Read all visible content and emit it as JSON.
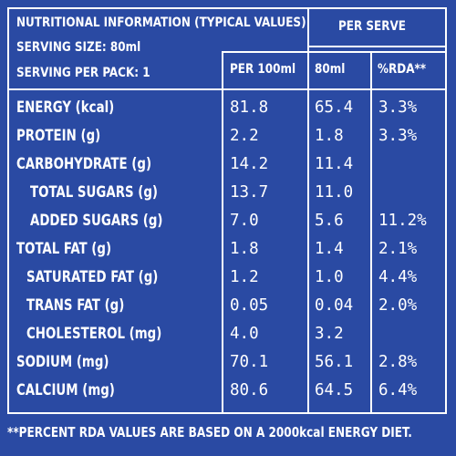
{
  "header": {
    "title": "NUTRITIONAL INFORMATION (TYPICAL VALUES)",
    "serving_size": "SERVING SIZE: 80ml",
    "serving_per_pack": "SERVING PER PACK: 1",
    "per_serve": "PER SERVE",
    "col_per100": "PER 100ml",
    "col_80ml": "80ml",
    "col_rda": "%RDA**"
  },
  "rows": [
    {
      "label": "ENERGY (kcal)",
      "per100": "81.8",
      "serve": "65.4",
      "rda": "3.3%"
    },
    {
      "label": "PROTEIN (g)",
      "per100": "2.2",
      "serve": "1.8",
      "rda": "3.3%"
    },
    {
      "label": "CARBOHYDRATE (g)",
      "per100": "14.2",
      "serve": "11.4",
      "rda": ""
    },
    {
      "label": "TOTAL SUGARS (g)",
      "per100": "13.7",
      "serve": "11.0",
      "rda": ""
    },
    {
      "label": "ADDED SUGARS (g)",
      "per100": "7.0",
      "serve": "5.6",
      "rda": "11.2%"
    },
    {
      "label": "TOTAL FAT (g)",
      "per100": "1.8",
      "serve": "1.4",
      "rda": "2.1%"
    },
    {
      "label": "SATURATED FAT (g)",
      "per100": "1.2",
      "serve": "1.0",
      "rda": "4.4%"
    },
    {
      "label": "TRANS FAT (g)",
      "per100": "0.05",
      "serve": "0.04",
      "rda": "2.0%"
    },
    {
      "label": "CHOLESTEROL (mg)",
      "per100": "4.0",
      "serve": "3.2",
      "rda": ""
    },
    {
      "label": "SODIUM (mg)",
      "per100": "70.1",
      "serve": "56.1",
      "rda": "2.8%"
    },
    {
      "label": "CALCIUM (mg)",
      "per100": "80.6",
      "serve": "64.5",
      "rda": "6.4%"
    }
  ],
  "footnote": "**PERCENT RDA VALUES ARE BASED ON A 2000kcal ENERGY DIET."
}
